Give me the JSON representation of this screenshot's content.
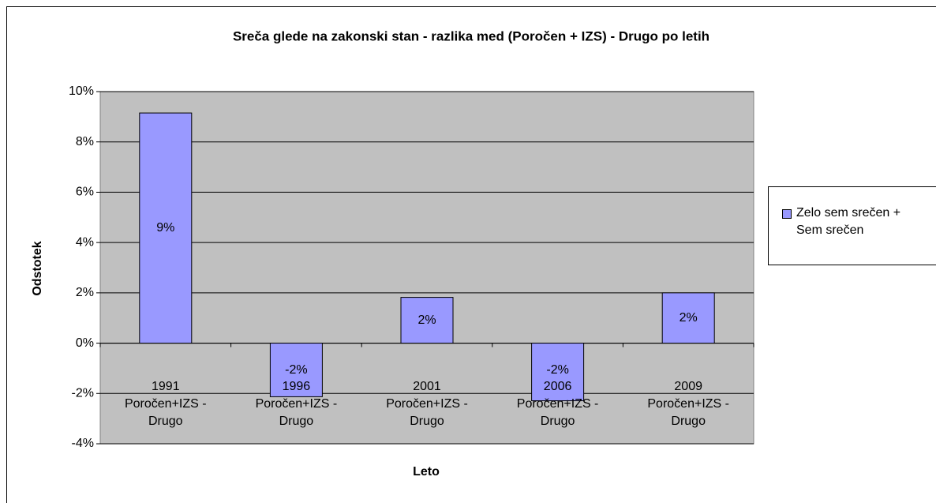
{
  "chart_data": {
    "type": "bar",
    "title": "Sreča glede na zakonski stan - razlika med (Poročen + IZS) - Drugo po letih",
    "x_label": "Leto",
    "y_label": "Odstotek",
    "categories": [
      "1991\nPoročen+IZS -\nDrugo",
      "1996\nPoročen+IZS -\nDrugo",
      "2001\nPoročen+IZS -\nDrugo",
      "2006\nPoročen+IZS -\nDrugo",
      "2009\nPoročen+IZS -\nDrugo"
    ],
    "series": [
      {
        "name": "Zelo sem srečen + Sem srečen",
        "color": "#9999ff",
        "values": [
          9.15,
          -2.13,
          1.82,
          -2.29,
          2.0
        ],
        "value_labels": [
          "9%",
          "-2%",
          "2%",
          "-2%",
          "2%"
        ]
      }
    ],
    "ylim": [
      -4,
      10
    ],
    "yticks": [
      {
        "value": -4,
        "label": "-4%"
      },
      {
        "value": -2,
        "label": "-2%"
      },
      {
        "value": 0,
        "label": "0%"
      },
      {
        "value": 2,
        "label": "2%"
      },
      {
        "value": 4,
        "label": "4%"
      },
      {
        "value": 6,
        "label": "6%"
      },
      {
        "value": 8,
        "label": "8%"
      },
      {
        "value": 10,
        "label": "10%"
      }
    ],
    "grid": true,
    "legend": "right"
  }
}
